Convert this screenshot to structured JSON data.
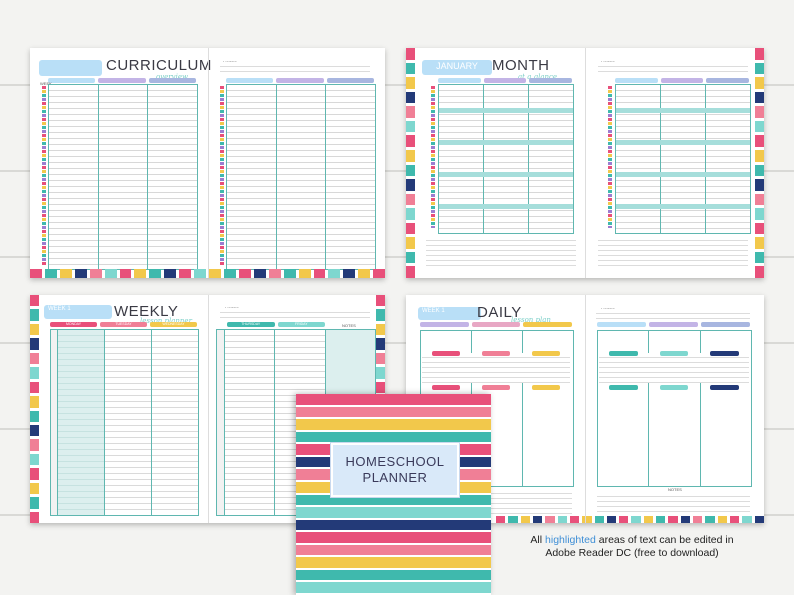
{
  "spreads": {
    "curriculum": {
      "title": "CURRICULUM",
      "script": "overview",
      "week_label": "WEEK",
      "notes_label": "NOTES"
    },
    "month": {
      "month": "JANUARY",
      "title": "MONTH",
      "script": "at a glance",
      "notes_label": "NOTES"
    },
    "weekly": {
      "week_pill": "WEEK 1",
      "title": "WEEKLY",
      "script": "lesson planner",
      "days": [
        "MONDAY",
        "TUESDAY",
        "WEDNESDAY",
        "THURSDAY",
        "FRIDAY"
      ],
      "notes_label": "NOTES"
    },
    "daily": {
      "week_pill": "WEEK 1",
      "title": "DAILY",
      "script": "lesson plan",
      "notes_label": "NOTES"
    }
  },
  "cover": {
    "line1": "HOMESCHOOL",
    "line2": "PLANNER"
  },
  "caption": {
    "part1": "All ",
    "highlight": "highlighted",
    "part2": " areas of text can be edited in",
    "line2": "Adobe Reader DC (free to download)"
  },
  "colors": {
    "pink": "#e8507a",
    "rose": "#f07f96",
    "yellow": "#f2c84b",
    "teal": "#3fb9ad",
    "mint": "#7ed7cf",
    "navy": "#233a78",
    "lavender": "#c3b4e6",
    "sky": "#b9dff7"
  },
  "stripe_palette": [
    "#e8507a",
    "#3fb9ad",
    "#f2c84b",
    "#233a78",
    "#f07f96",
    "#7ed7cf",
    "#e8507a",
    "#f2c84b"
  ]
}
